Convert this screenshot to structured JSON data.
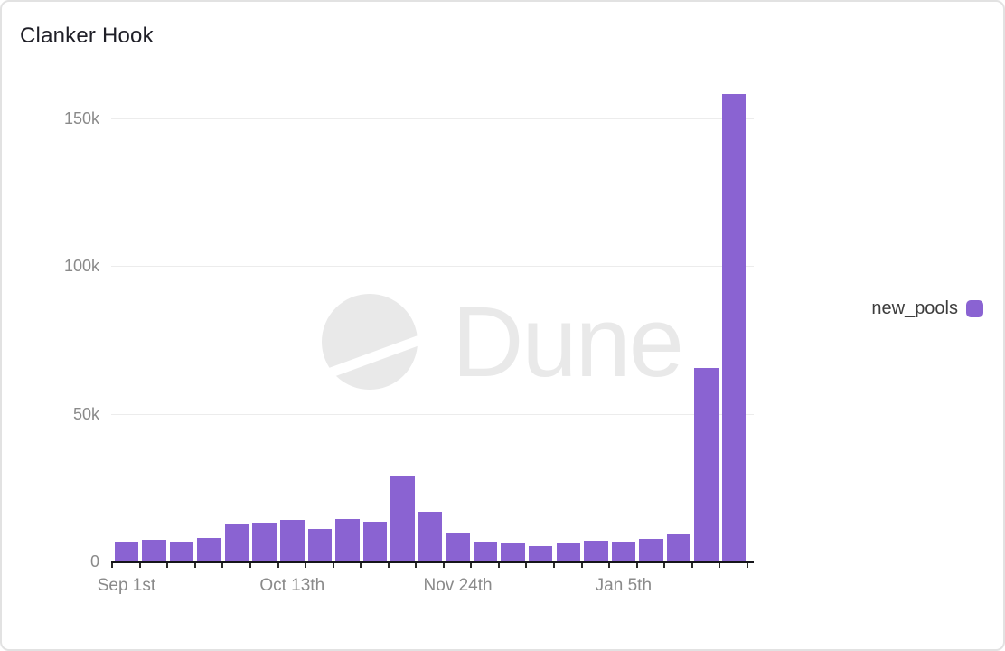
{
  "title": "Clanker Hook",
  "legend": {
    "label": "new_pools",
    "color": "#8a63d2"
  },
  "watermark": {
    "text": "Dune"
  },
  "chart_data": {
    "type": "bar",
    "title": "Clanker Hook",
    "series_name": "new_pools",
    "categories": [
      "Sep 1st",
      "",
      "",
      "",
      "",
      "",
      "Oct 13th",
      "",
      "",
      "",
      "",
      "",
      "Nov 24th",
      "",
      "",
      "",
      "",
      "",
      "Jan 5th",
      "",
      "",
      "",
      ""
    ],
    "values": [
      6500,
      7200,
      6300,
      7800,
      12500,
      13000,
      14000,
      11000,
      14300,
      13500,
      28600,
      16800,
      9400,
      6400,
      6200,
      5100,
      6200,
      7000,
      6500,
      7600,
      9300,
      65500,
      158000
    ],
    "x_tick_labels": [
      "Sep 1st",
      "Oct 13th",
      "Nov 24th",
      "Jan 5th"
    ],
    "y_tick_labels": [
      "0",
      "50k",
      "100k",
      "150k"
    ],
    "y_tick_values": [
      0,
      50000,
      100000,
      150000
    ],
    "ylim": [
      0,
      160000
    ],
    "xlabel": "",
    "ylabel": "",
    "bar_color": "#8a63d2",
    "grid": true,
    "legend_position": "right",
    "interval": "weekly"
  }
}
